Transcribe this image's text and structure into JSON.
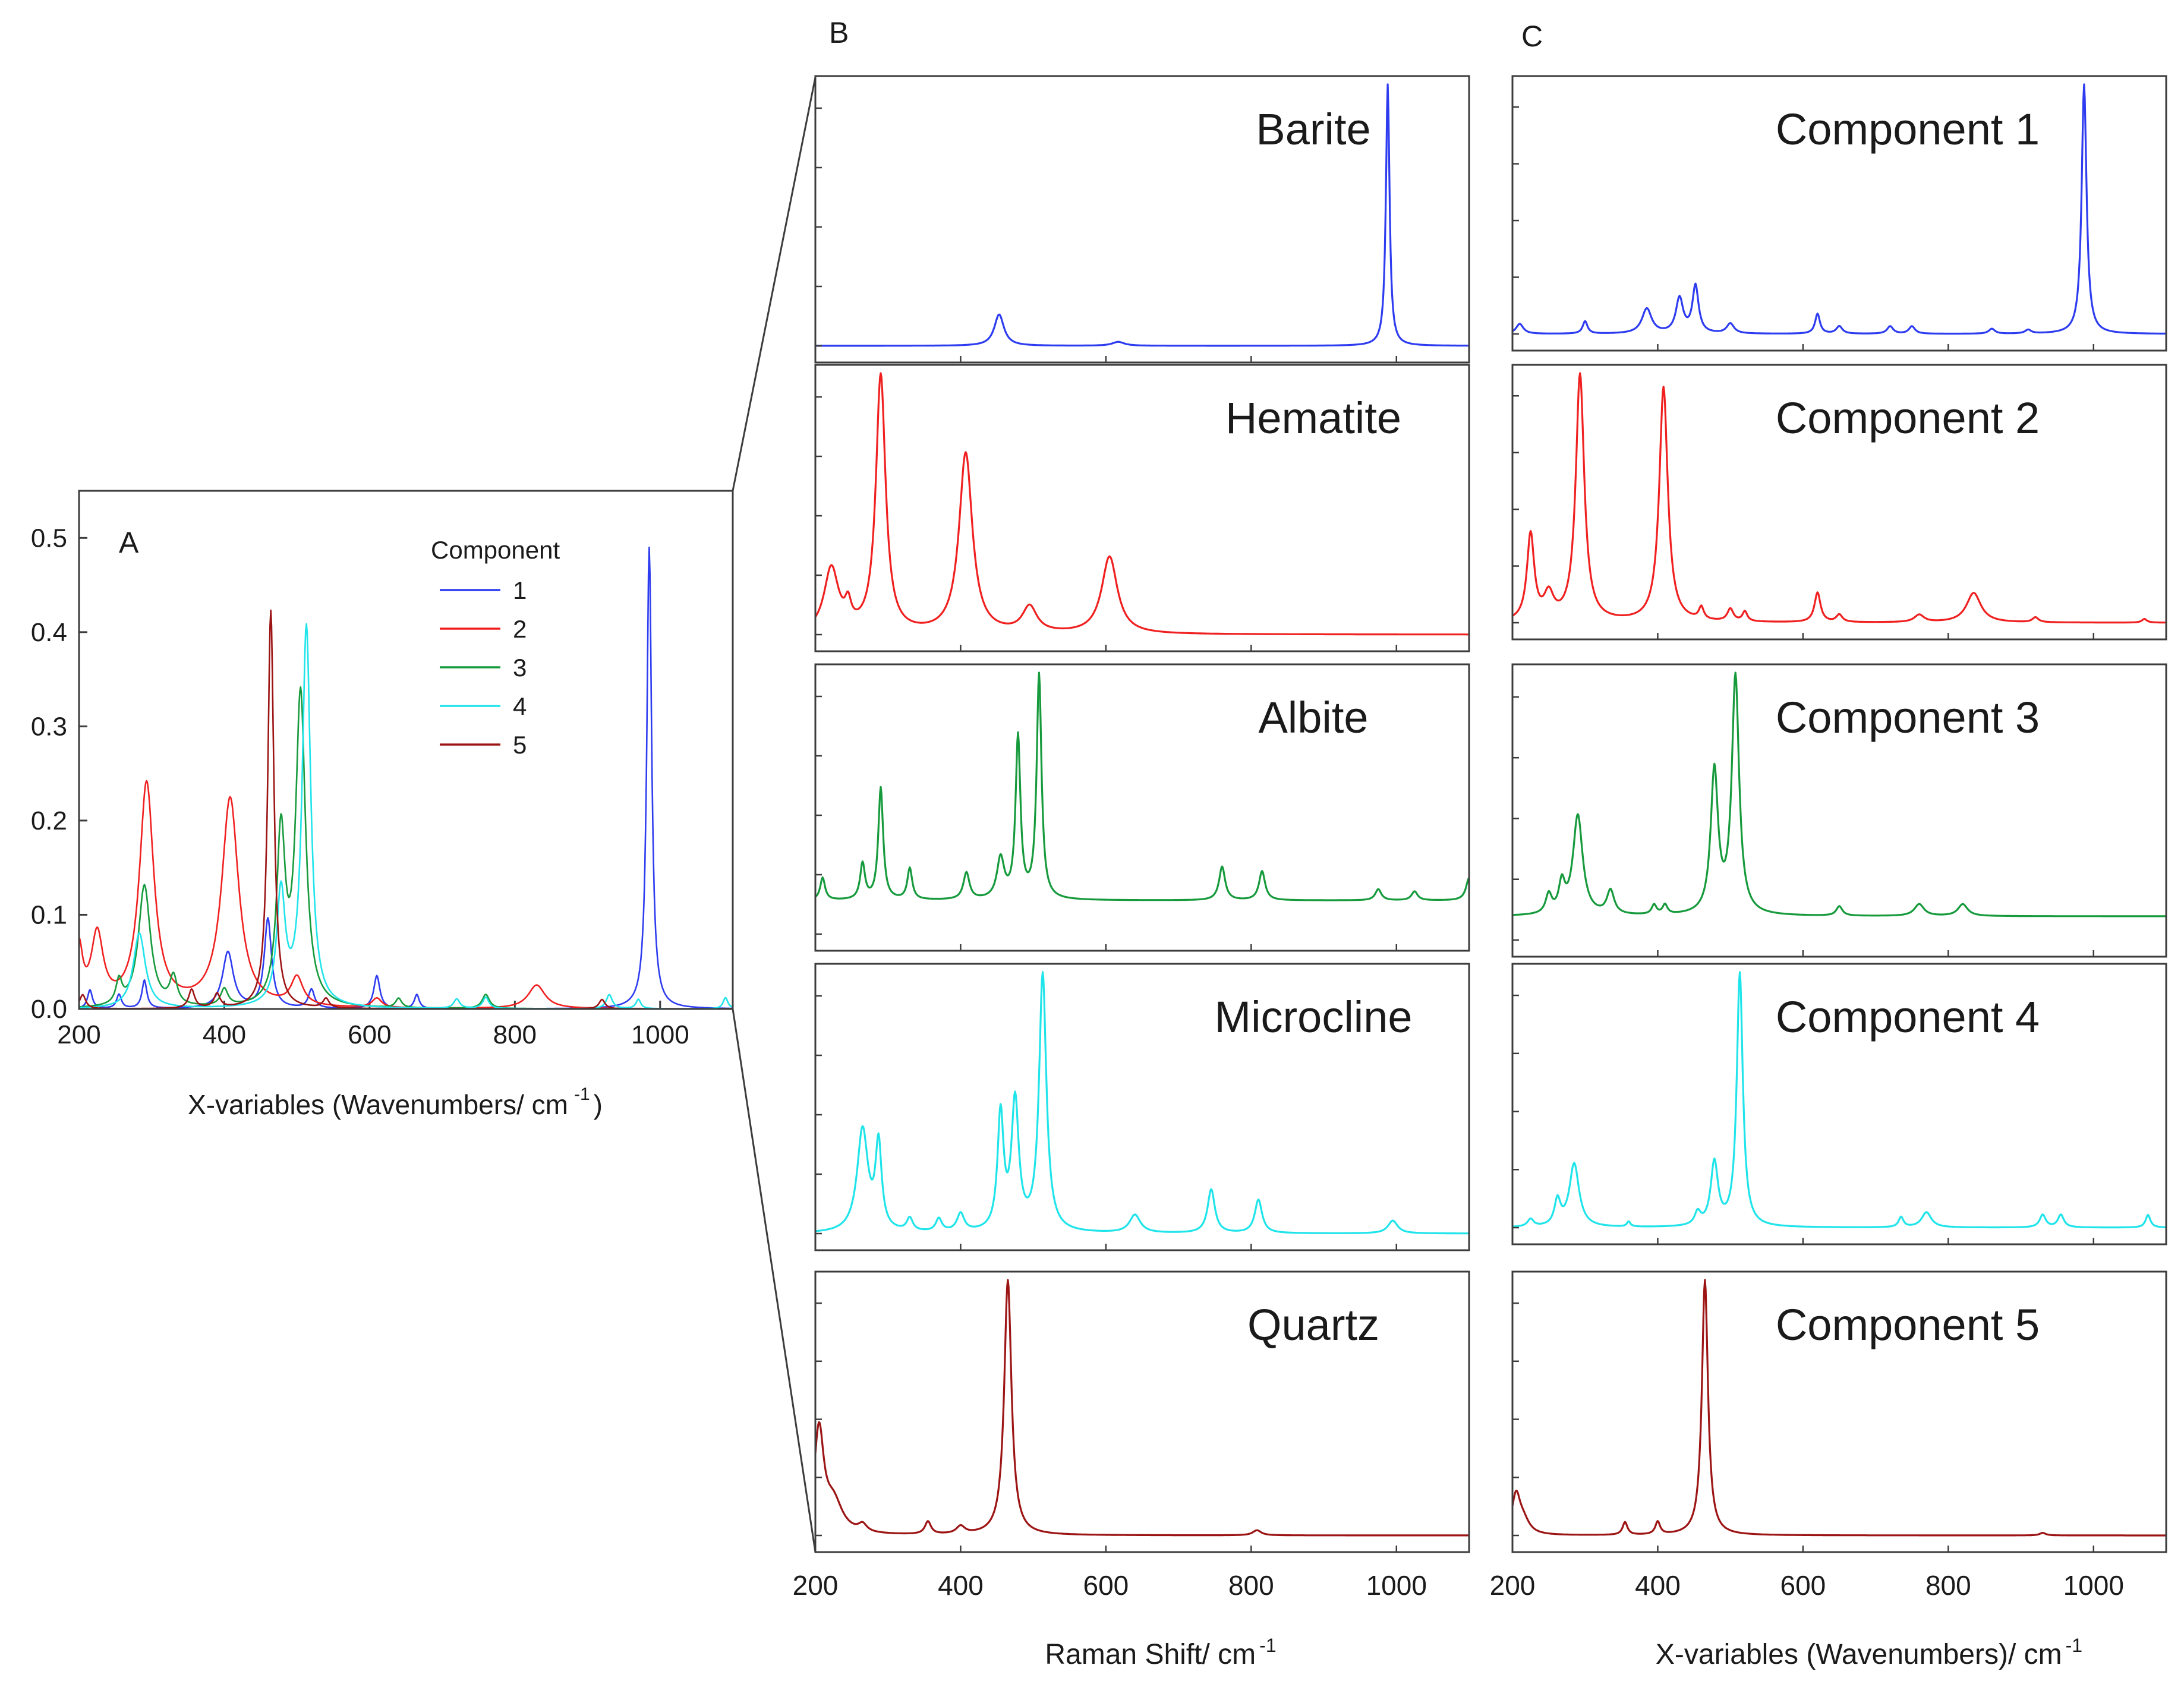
{
  "colors": {
    "c1": "#2e3cf0",
    "c2": "#f02020",
    "c3": "#169a3c",
    "c4": "#1fe4ea",
    "c5": "#9c1414",
    "axis": "#3c3c3c",
    "text": "#1a1a1a"
  },
  "chart_data": [
    {
      "panel": "A",
      "type": "line",
      "panel_label": "A",
      "xlabel": "X-variables (Wavenumbers/ cm",
      "xlabel_sup": "-1",
      "xlabel_end": ")",
      "xlim": [
        200,
        1100
      ],
      "ylim": [
        0,
        0.55
      ],
      "xticks": [
        "200",
        "400",
        "600",
        "800",
        "1000"
      ],
      "yticks": [
        "0.0",
        "0.1",
        "0.2",
        "0.3",
        "0.4",
        "0.5"
      ],
      "legend_title": "Component",
      "legend_position": "top-right",
      "series": [
        {
          "name": "1",
          "color_key": "c1",
          "peaks": [
            [
              985,
              0.49,
              4
            ],
            [
              405,
              0.06,
              9
            ],
            [
              460,
              0.095,
              6
            ],
            [
              610,
              0.035,
              5
            ],
            [
              215,
              0.02,
              4
            ],
            [
              255,
              0.015,
              4
            ],
            [
              290,
              0.03,
              4
            ],
            [
              520,
              0.02,
              5
            ],
            [
              665,
              0.015,
              4
            ]
          ]
        },
        {
          "name": "2",
          "color_key": "c2",
          "peaks": [
            [
              293,
              0.237,
              12
            ],
            [
              408,
              0.222,
              14
            ],
            [
              225,
              0.075,
              10
            ],
            [
              200,
              0.06,
              6
            ],
            [
              830,
              0.025,
              14
            ],
            [
              500,
              0.03,
              10
            ],
            [
              610,
              0.01,
              8
            ]
          ]
        },
        {
          "name": "3",
          "color_key": "c3",
          "peaks": [
            [
              505,
              0.33,
              8
            ],
            [
              478,
              0.18,
              7
            ],
            [
              290,
              0.13,
              10
            ],
            [
              255,
              0.025,
              5
            ],
            [
              330,
              0.03,
              6
            ],
            [
              400,
              0.018,
              6
            ],
            [
              760,
              0.015,
              6
            ],
            [
              640,
              0.01,
              5
            ]
          ]
        },
        {
          "name": "4",
          "color_key": "c4",
          "peaks": [
            [
              513,
              0.404,
              7
            ],
            [
              478,
              0.12,
              7
            ],
            [
              283,
              0.08,
              10
            ],
            [
              720,
              0.01,
              5
            ],
            [
              760,
              0.012,
              5
            ],
            [
              930,
              0.015,
              5
            ],
            [
              1090,
              0.012,
              4
            ],
            [
              970,
              0.01,
              4
            ]
          ]
        },
        {
          "name": "5",
          "color_key": "c5",
          "peaks": [
            [
              464,
              0.423,
              5
            ],
            [
              355,
              0.02,
              5
            ],
            [
              390,
              0.015,
              5
            ],
            [
              205,
              0.015,
              5
            ],
            [
              540,
              0.01,
              5
            ],
            [
              920,
              0.01,
              5
            ]
          ]
        }
      ]
    },
    {
      "panel": "B",
      "type": "line",
      "panel_label": "B",
      "xlabel": "Raman Shift/ cm",
      "xlabel_sup": "-1",
      "xlim": [
        200,
        1100
      ],
      "xticks": [
        "200",
        "400",
        "600",
        "800",
        "1000"
      ],
      "subplots": [
        {
          "label": "Barite",
          "color_key": "c1",
          "baseline": 0.0,
          "peaks": [
            [
              988,
              1.0,
              3
            ],
            [
              453,
              0.12,
              8
            ],
            [
              617,
              0.015,
              10
            ]
          ]
        },
        {
          "label": "Hematite",
          "color_key": "c2",
          "baseline": 0.0,
          "peaks": [
            [
              290,
              1.0,
              8
            ],
            [
              407,
              0.7,
              11
            ],
            [
              605,
              0.3,
              13
            ],
            [
              495,
              0.1,
              12
            ],
            [
              222,
              0.25,
              12
            ],
            [
              245,
              0.08,
              5
            ]
          ]
        },
        {
          "label": "Albite",
          "color_key": "c3",
          "baseline": 0.15,
          "peaks": [
            [
              508,
              1.0,
              4
            ],
            [
              479,
              0.72,
              4
            ],
            [
              290,
              0.5,
              4
            ],
            [
              760,
              0.15,
              5
            ],
            [
              815,
              0.13,
              5
            ],
            [
              265,
              0.16,
              4
            ],
            [
              330,
              0.14,
              4
            ],
            [
              408,
              0.12,
              5
            ],
            [
              455,
              0.18,
              6
            ],
            [
              975,
              0.05,
              5
            ],
            [
              1100,
              0.1,
              5
            ],
            [
              210,
              0.1,
              4
            ],
            [
              1025,
              0.04,
              5
            ]
          ]
        },
        {
          "label": "Microcline",
          "color_key": "c4",
          "baseline": 0.0,
          "peaks": [
            [
              513,
              1.0,
              6
            ],
            [
              475,
              0.5,
              6
            ],
            [
              455,
              0.45,
              5
            ],
            [
              265,
              0.4,
              9
            ],
            [
              287,
              0.33,
              5
            ],
            [
              745,
              0.17,
              6
            ],
            [
              810,
              0.13,
              6
            ],
            [
              640,
              0.07,
              9
            ],
            [
              400,
              0.07,
              6
            ],
            [
              370,
              0.05,
              5
            ],
            [
              330,
              0.05,
              5
            ],
            [
              995,
              0.05,
              8
            ]
          ]
        },
        {
          "label": "Quartz",
          "color_key": "c5",
          "baseline": 0.0,
          "peaks": [
            [
              465,
              1.0,
              6
            ],
            [
              205,
              0.4,
              8
            ],
            [
              225,
              0.12,
              15
            ],
            [
              355,
              0.05,
              5
            ],
            [
              400,
              0.03,
              7
            ],
            [
              808,
              0.02,
              7
            ],
            [
              265,
              0.03,
              7
            ]
          ]
        }
      ]
    },
    {
      "panel": "C",
      "type": "line",
      "panel_label": "C",
      "xlabel": "X-variables (Wavenumbers)/ cm",
      "xlabel_sup": "-1",
      "xlim": [
        200,
        1100
      ],
      "xticks": [
        "200",
        "400",
        "600",
        "800",
        "1000"
      ],
      "subplots": [
        {
          "label": "Component 1",
          "color_key": "c1",
          "baseline": 0.0,
          "peaks": [
            [
              987,
              1.0,
              4
            ],
            [
              452,
              0.19,
              5
            ],
            [
              430,
              0.14,
              6
            ],
            [
              385,
              0.1,
              8
            ],
            [
              300,
              0.05,
              4
            ],
            [
              620,
              0.08,
              4
            ],
            [
              210,
              0.04,
              6
            ],
            [
              500,
              0.04,
              6
            ],
            [
              650,
              0.03,
              5
            ],
            [
              720,
              0.03,
              5
            ],
            [
              750,
              0.03,
              5
            ],
            [
              860,
              0.02,
              5
            ],
            [
              910,
              0.015,
              5
            ]
          ]
        },
        {
          "label": "Component 2",
          "color_key": "c2",
          "baseline": 0.0,
          "peaks": [
            [
              293,
              1.0,
              7
            ],
            [
              408,
              0.95,
              7
            ],
            [
              225,
              0.35,
              6
            ],
            [
              250,
              0.1,
              8
            ],
            [
              620,
              0.12,
              5
            ],
            [
              835,
              0.12,
              12
            ],
            [
              460,
              0.05,
              4
            ],
            [
              500,
              0.05,
              5
            ],
            [
              520,
              0.04,
              4
            ],
            [
              650,
              0.03,
              5
            ],
            [
              760,
              0.03,
              8
            ],
            [
              920,
              0.02,
              5
            ],
            [
              1070,
              0.015,
              4
            ]
          ]
        },
        {
          "label": "Component 3",
          "color_key": "c3",
          "baseline": 0.1,
          "peaks": [
            [
              507,
              1.0,
              6
            ],
            [
              478,
              0.6,
              6
            ],
            [
              290,
              0.42,
              8
            ],
            [
              268,
              0.12,
              5
            ],
            [
              335,
              0.1,
              6
            ],
            [
              250,
              0.08,
              5
            ],
            [
              410,
              0.04,
              4
            ],
            [
              760,
              0.05,
              8
            ],
            [
              820,
              0.05,
              8
            ],
            [
              650,
              0.04,
              5
            ],
            [
              395,
              0.04,
              4
            ]
          ]
        },
        {
          "label": "Component 4",
          "color_key": "c4",
          "baseline": 0.0,
          "peaks": [
            [
              513,
              1.0,
              5
            ],
            [
              478,
              0.25,
              6
            ],
            [
              285,
              0.25,
              8
            ],
            [
              262,
              0.1,
              5
            ],
            [
              455,
              0.05,
              5
            ],
            [
              770,
              0.06,
              8
            ],
            [
              735,
              0.04,
              4
            ],
            [
              930,
              0.05,
              5
            ],
            [
              955,
              0.05,
              5
            ],
            [
              1075,
              0.05,
              4
            ],
            [
              225,
              0.03,
              5
            ],
            [
              360,
              0.02,
              3
            ]
          ]
        },
        {
          "label": "Component 5",
          "color_key": "c5",
          "baseline": 0.0,
          "peaks": [
            [
              465,
              1.0,
              5
            ],
            [
              205,
              0.15,
              7
            ],
            [
              215,
              0.05,
              10
            ],
            [
              355,
              0.05,
              4
            ],
            [
              400,
              0.05,
              4
            ],
            [
              930,
              0.01,
              5
            ]
          ]
        }
      ]
    }
  ]
}
